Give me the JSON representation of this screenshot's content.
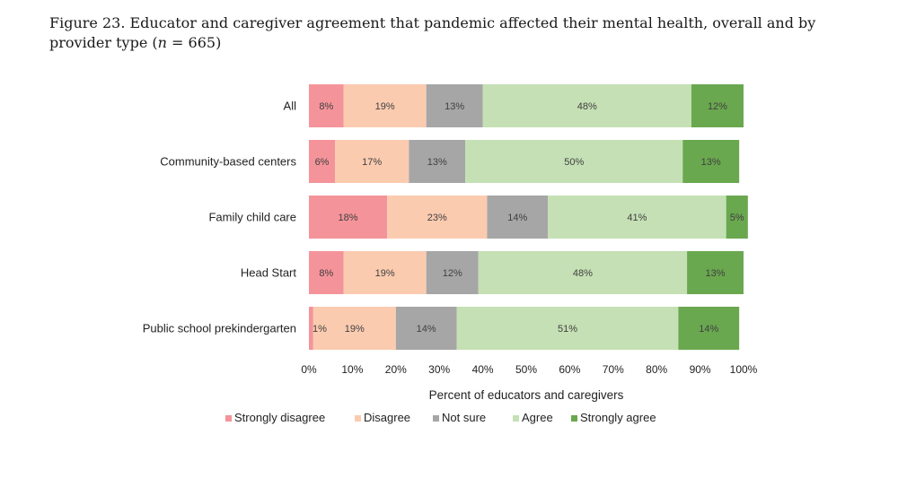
{
  "figure": {
    "title_prefix": "Figure 23. Educator and caregiver agreement that pandemic affected their mental health, overall and by provider type (",
    "title_n": "n",
    "title_suffix": " = 665)"
  },
  "chart_data": {
    "type": "bar",
    "orientation": "horizontal",
    "stacked": true,
    "categories": [
      "All",
      "Community-based centers",
      "Family child care",
      "Head Start",
      "Public school prekindergarten"
    ],
    "series": [
      {
        "name": "Strongly disagree",
        "color": "#f4949a",
        "values": [
          8,
          6,
          18,
          8,
          1
        ],
        "labels": [
          "8%",
          "6%",
          "18%",
          "8%",
          "1%"
        ]
      },
      {
        "name": "Disagree",
        "color": "#fbcbb0",
        "values": [
          19,
          17,
          23,
          19,
          19
        ],
        "labels": [
          "19%",
          "17%",
          "23%",
          "19%",
          "19%"
        ]
      },
      {
        "name": "Not sure",
        "color": "#a6a6a6",
        "values": [
          13,
          13,
          14,
          12,
          14
        ],
        "labels": [
          "13%",
          "13%",
          "14%",
          "12%",
          "14%"
        ]
      },
      {
        "name": "Agree",
        "color": "#c5e0b4",
        "values": [
          48,
          50,
          41,
          48,
          51
        ],
        "labels": [
          "48%",
          "50%",
          "41%",
          "48%",
          "51%"
        ]
      },
      {
        "name": "Strongly agree",
        "color": "#6aa84f",
        "values": [
          12,
          13,
          5,
          13,
          14
        ],
        "labels": [
          "12%",
          "13%",
          "5%",
          "13%",
          "14%"
        ]
      }
    ],
    "xlim": [
      0,
      100
    ],
    "xticks": [
      "0%",
      "10%",
      "20%",
      "30%",
      "40%",
      "50%",
      "60%",
      "70%",
      "80%",
      "90%",
      "100%"
    ],
    "xlabel": "Percent of educators and caregivers",
    "ylabel": "",
    "grid": false,
    "legend_position": "bottom"
  }
}
